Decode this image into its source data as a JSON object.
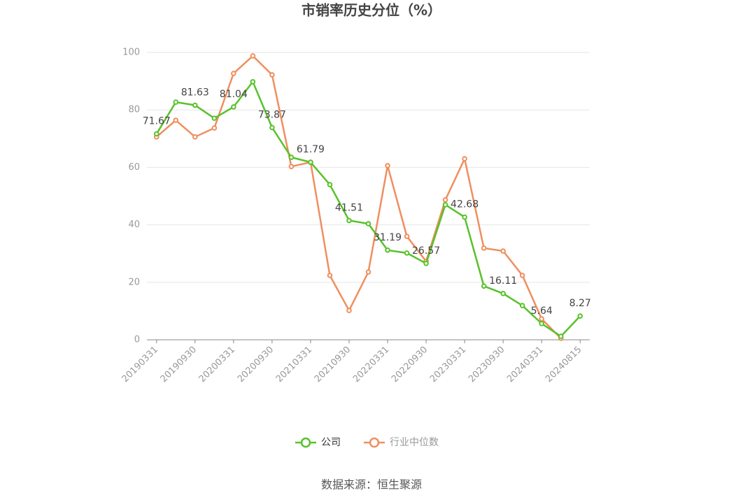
{
  "chart_data": {
    "type": "line",
    "title": "市销率历史分位（%）",
    "categories": [
      "20190331",
      null,
      "20190930",
      null,
      "20200331",
      null,
      "20200930",
      null,
      "20210331",
      null,
      "20210930",
      null,
      "20220331",
      null,
      "20220930",
      null,
      "20230331",
      null,
      "20230930",
      null,
      "20240331",
      null,
      "20240815"
    ],
    "series": [
      {
        "name": "公司",
        "color": "#58c22b",
        "values": [
          71.67,
          82.7,
          81.63,
          77.1,
          81.04,
          89.8,
          73.87,
          63.5,
          61.79,
          54.0,
          41.51,
          40.4,
          31.19,
          30.2,
          26.57,
          47.0,
          42.68,
          18.7,
          16.11,
          11.9,
          5.64,
          1.2,
          8.27
        ],
        "value_labels": [
          "71.67",
          null,
          "81.63",
          null,
          "81.04",
          null,
          "73.87",
          null,
          "61.79",
          null,
          "41.51",
          null,
          "31.19",
          null,
          "26.57",
          null,
          "42.68",
          null,
          "16.11",
          null,
          "5.64",
          null,
          "8.27"
        ]
      },
      {
        "name": "行业中位数",
        "color": "#ef8f5f",
        "values": [
          70.6,
          76.4,
          70.6,
          73.7,
          92.7,
          98.8,
          92.2,
          60.3,
          61.8,
          22.4,
          10.2,
          23.6,
          60.6,
          36.0,
          27.3,
          48.7,
          63.0,
          31.9,
          30.9,
          22.4,
          7.3,
          0.5,
          null
        ]
      }
    ],
    "ylim": [
      0,
      100
    ],
    "yticks": [
      0,
      20,
      40,
      60,
      80,
      100
    ],
    "grid": true,
    "legend": "bottom",
    "source": "数据来源：恒生聚源"
  }
}
